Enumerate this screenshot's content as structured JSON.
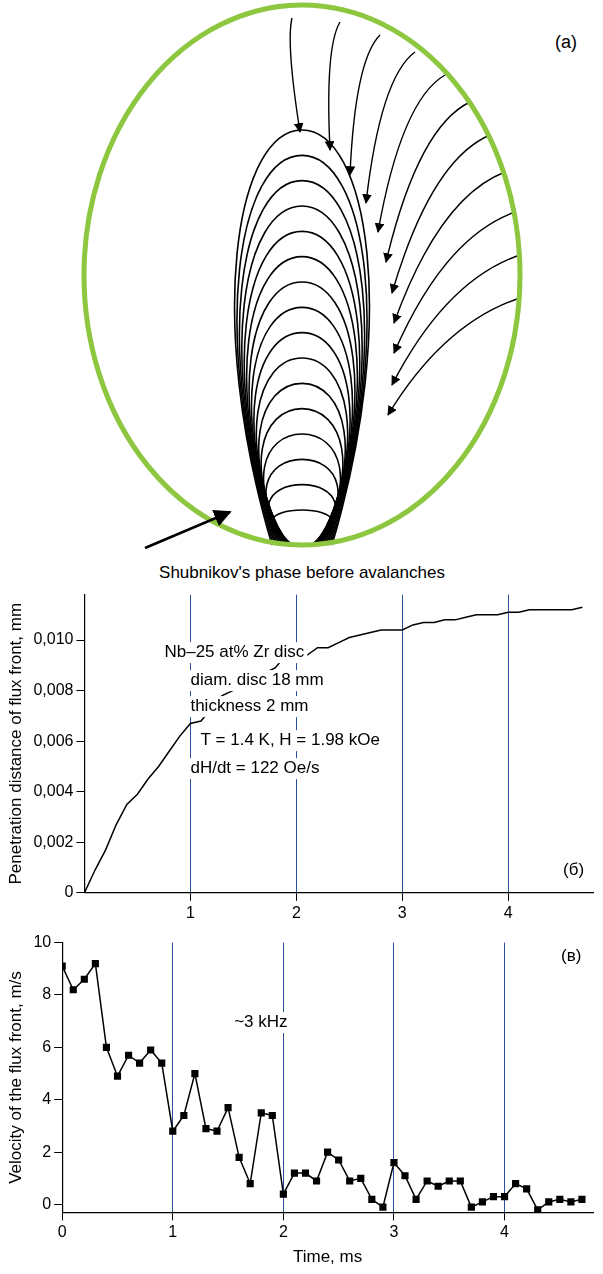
{
  "diagram": {
    "panel_label": "(a)",
    "caption": "Shubnikov's phase before avalanches"
  },
  "chart_data": [
    {
      "type": "line",
      "panel_label": "(б)",
      "y_label": "Penetration distance of flux front, mm",
      "annotation": [
        "Nb–25 at% Zr disc",
        "diam. disc 18 mm",
        "thickness 2 mm",
        "T = 1.4 K, H = 1.98 kOe",
        "dH/dt = 122 Oe/s"
      ],
      "x": [
        0,
        0.1,
        0.2,
        0.3,
        0.4,
        0.5,
        0.6,
        0.7,
        0.8,
        0.9,
        1.0,
        1.1,
        1.2,
        1.3,
        1.4,
        1.5,
        1.6,
        1.7,
        1.8,
        1.9,
        2.0,
        2.1,
        2.2,
        2.3,
        2.4,
        2.5,
        2.6,
        2.7,
        2.8,
        2.9,
        3.0,
        3.1,
        3.2,
        3.3,
        3.4,
        3.5,
        3.6,
        3.7,
        3.8,
        3.9,
        4.0,
        4.1,
        4.2,
        4.3,
        4.4,
        4.5,
        4.6,
        4.7
      ],
      "values": [
        0,
        0.0009,
        0.0017,
        0.0027,
        0.0035,
        0.0039,
        0.0045,
        0.005,
        0.0056,
        0.0062,
        0.0067,
        0.0068,
        0.0073,
        0.0078,
        0.008,
        0.0083,
        0.0087,
        0.0087,
        0.0089,
        0.0094,
        0.0095,
        0.0094,
        0.0097,
        0.0097,
        0.0099,
        0.0101,
        0.0102,
        0.0103,
        0.0104,
        0.0104,
        0.0104,
        0.0106,
        0.0107,
        0.0107,
        0.0108,
        0.0108,
        0.0109,
        0.011,
        0.011,
        0.011,
        0.0111,
        0.0111,
        0.0112,
        0.0112,
        0.0112,
        0.0112,
        0.0112,
        0.0113
      ],
      "color": "#000000",
      "marker": "none",
      "line_style": "solid",
      "xlim": [
        0,
        4.8
      ],
      "xticks": [
        1,
        2,
        3,
        4
      ],
      "ylim": [
        0,
        0.0118
      ],
      "yticks": [
        0,
        {
          "value": 0.002,
          "label": "0,002"
        },
        {
          "value": 0.004,
          "label": "0,004"
        },
        {
          "value": 0.006,
          "label": "0,006"
        },
        {
          "value": 0.008,
          "label": "0,008"
        },
        {
          "value": 0.01,
          "label": "0,010"
        }
      ],
      "grid": "x"
    },
    {
      "type": "line",
      "panel_label": "(в)",
      "x_label": "Time, ms",
      "y_label": "Velocity of the flux front, m/s",
      "annotation": [
        "~3 kHz"
      ],
      "x": [
        0,
        0.1,
        0.2,
        0.3,
        0.4,
        0.5,
        0.6,
        0.7,
        0.8,
        0.9,
        1.0,
        1.1,
        1.2,
        1.3,
        1.4,
        1.5,
        1.6,
        1.7,
        1.8,
        1.9,
        2.0,
        2.1,
        2.2,
        2.3,
        2.4,
        2.5,
        2.6,
        2.7,
        2.8,
        2.9,
        3.0,
        3.1,
        3.2,
        3.3,
        3.4,
        3.5,
        3.6,
        3.7,
        3.8,
        3.9,
        4.0,
        4.1,
        4.2,
        4.3,
        4.4,
        4.5,
        4.6,
        4.7
      ],
      "values": [
        9.1,
        8.2,
        8.6,
        9.2,
        6.0,
        4.9,
        5.7,
        5.4,
        5.9,
        5.4,
        2.8,
        3.4,
        5.0,
        2.9,
        2.8,
        3.7,
        1.8,
        0.8,
        3.5,
        3.4,
        0.4,
        1.2,
        1.2,
        0.9,
        2.0,
        1.7,
        0.9,
        1.0,
        0.2,
        -0.1,
        1.6,
        1.1,
        0.2,
        0.9,
        0.7,
        0.9,
        0.9,
        -0.1,
        0.1,
        0.3,
        0.3,
        0.8,
        0.6,
        -0.2,
        0.1,
        0.2,
        0.1,
        0.2
      ],
      "color": "#000000",
      "marker": "square",
      "line_style": "solid",
      "xlim": [
        0,
        4.8
      ],
      "xticks": [
        0,
        1,
        2,
        3,
        4
      ],
      "ylim": [
        -0.3,
        10
      ],
      "yticks": [
        0,
        2,
        4,
        6,
        8,
        10
      ],
      "grid": "x"
    }
  ]
}
